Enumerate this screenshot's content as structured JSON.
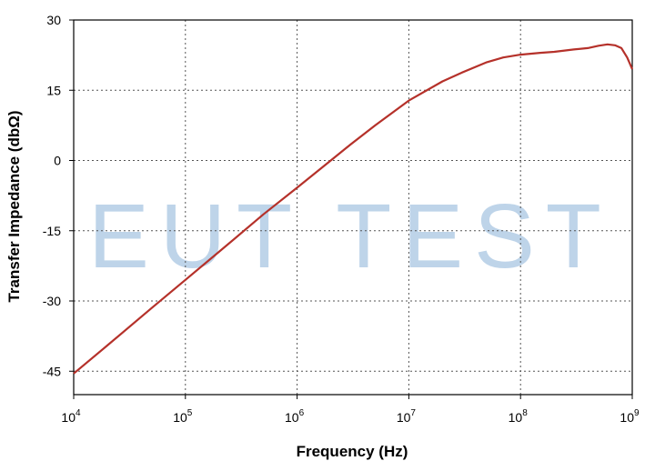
{
  "chart_data": {
    "type": "line",
    "xlabel": "Frequency (Hz)",
    "ylabel": "Transfer Impedance (dbΩ)",
    "x_scale": "log",
    "xlim": [
      10000,
      1000000000
    ],
    "ylim": [
      -50,
      30
    ],
    "x_ticks": [
      {
        "base": "10",
        "exp": "4"
      },
      {
        "base": "10",
        "exp": "5"
      },
      {
        "base": "10",
        "exp": "6"
      },
      {
        "base": "10",
        "exp": "7"
      },
      {
        "base": "10",
        "exp": "8"
      },
      {
        "base": "10",
        "exp": "9"
      }
    ],
    "y_ticks": [
      "30",
      "15",
      "0",
      "-15",
      "-30",
      "-45"
    ],
    "grid": true,
    "line_color": "#b5312a",
    "series": [
      {
        "x": [
          10000,
          20000,
          50000,
          100000,
          200000,
          500000,
          1000000,
          2000000,
          3000000,
          5000000,
          10000000,
          20000000,
          30000000,
          50000000,
          70000000,
          100000000,
          150000000,
          200000000,
          300000000,
          400000000,
          500000000,
          600000000,
          700000000,
          800000000,
          900000000,
          1000000000
        ],
        "y": [
          -45.5,
          -39.5,
          -31.5,
          -25.5,
          -19.5,
          -11.5,
          -5.8,
          0.0,
          3.4,
          7.5,
          12.8,
          16.9,
          18.8,
          21.0,
          22.0,
          22.6,
          23.0,
          23.2,
          23.7,
          24.0,
          24.5,
          24.8,
          24.6,
          24.0,
          22.0,
          19.5
        ]
      }
    ]
  },
  "watermark": "EUT TEST"
}
